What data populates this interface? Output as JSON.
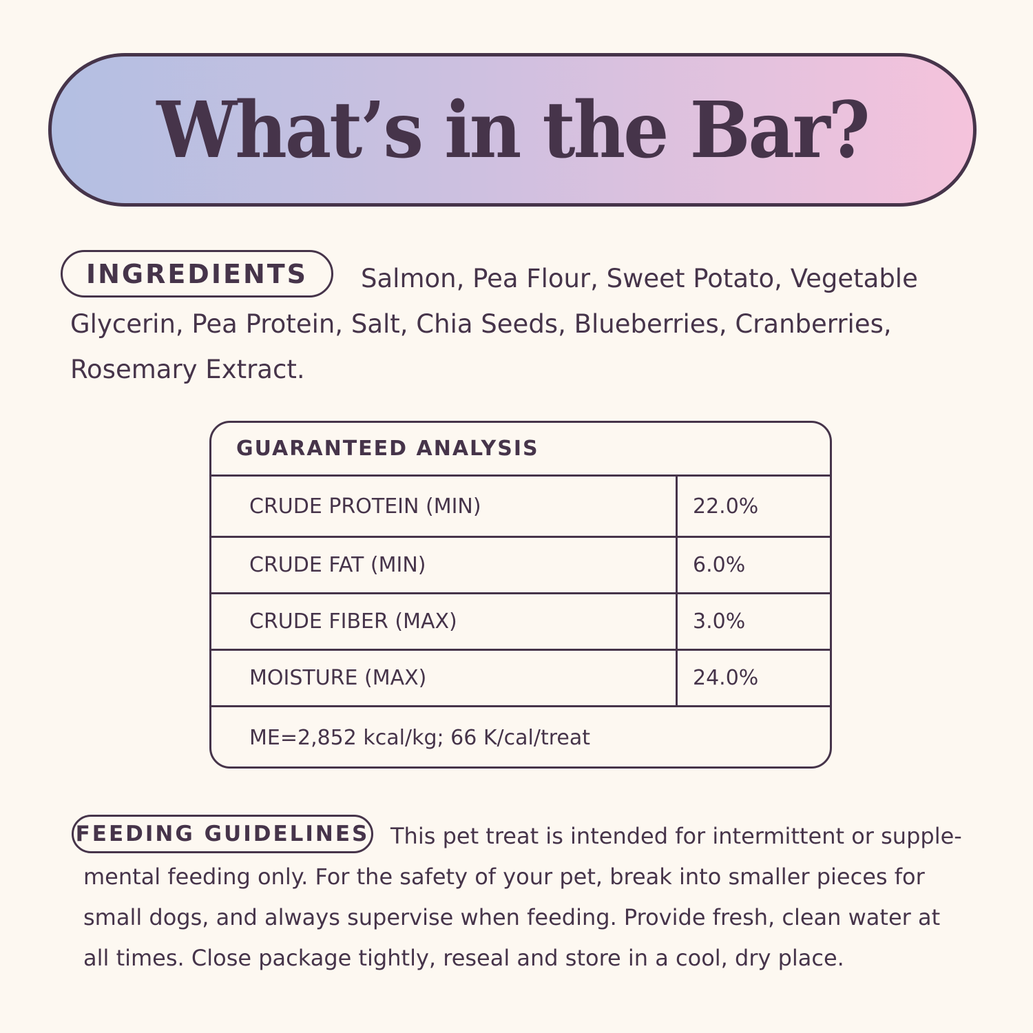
{
  "title": "What’s in the Bar?",
  "ingredients": {
    "label": "INGREDIENTS",
    "text": "Salmon, Pea Flour, Sweet Potato, Vegetable Glycerin, Pea Protein, Salt, Chia Seeds, Blueberries, Cranberries, Rosemary Extract."
  },
  "analysis": {
    "heading": "GUARANTEED ANALYSIS",
    "rows": [
      {
        "label": "CRUDE PROTEIN (MIN)",
        "value": "22.0%"
      },
      {
        "label": "CRUDE FAT (MIN)",
        "value": "6.0%"
      },
      {
        "label": "CRUDE FIBER (MAX)",
        "value": "3.0%"
      },
      {
        "label": "MOISTURE (MAX)",
        "value": "24.0%"
      }
    ],
    "footer": "ME=2,852 kcal/kg; 66 K/cal/treat"
  },
  "feeding": {
    "label": "FEEDING GUIDELINES",
    "text": "This pet treat is intended for intermittent or supple-mental feeding only. For the safety of your pet, break into smaller pieces for small dogs, and always supervise when feeding. Provide fresh, clean water at all times. Close package tightly, reseal and store in a cool, dry place."
  },
  "colors": {
    "text": "#46344a",
    "background": "#fdf8f1",
    "gradient_start": "#b3bfe2",
    "gradient_end": "#f5c3dc"
  }
}
